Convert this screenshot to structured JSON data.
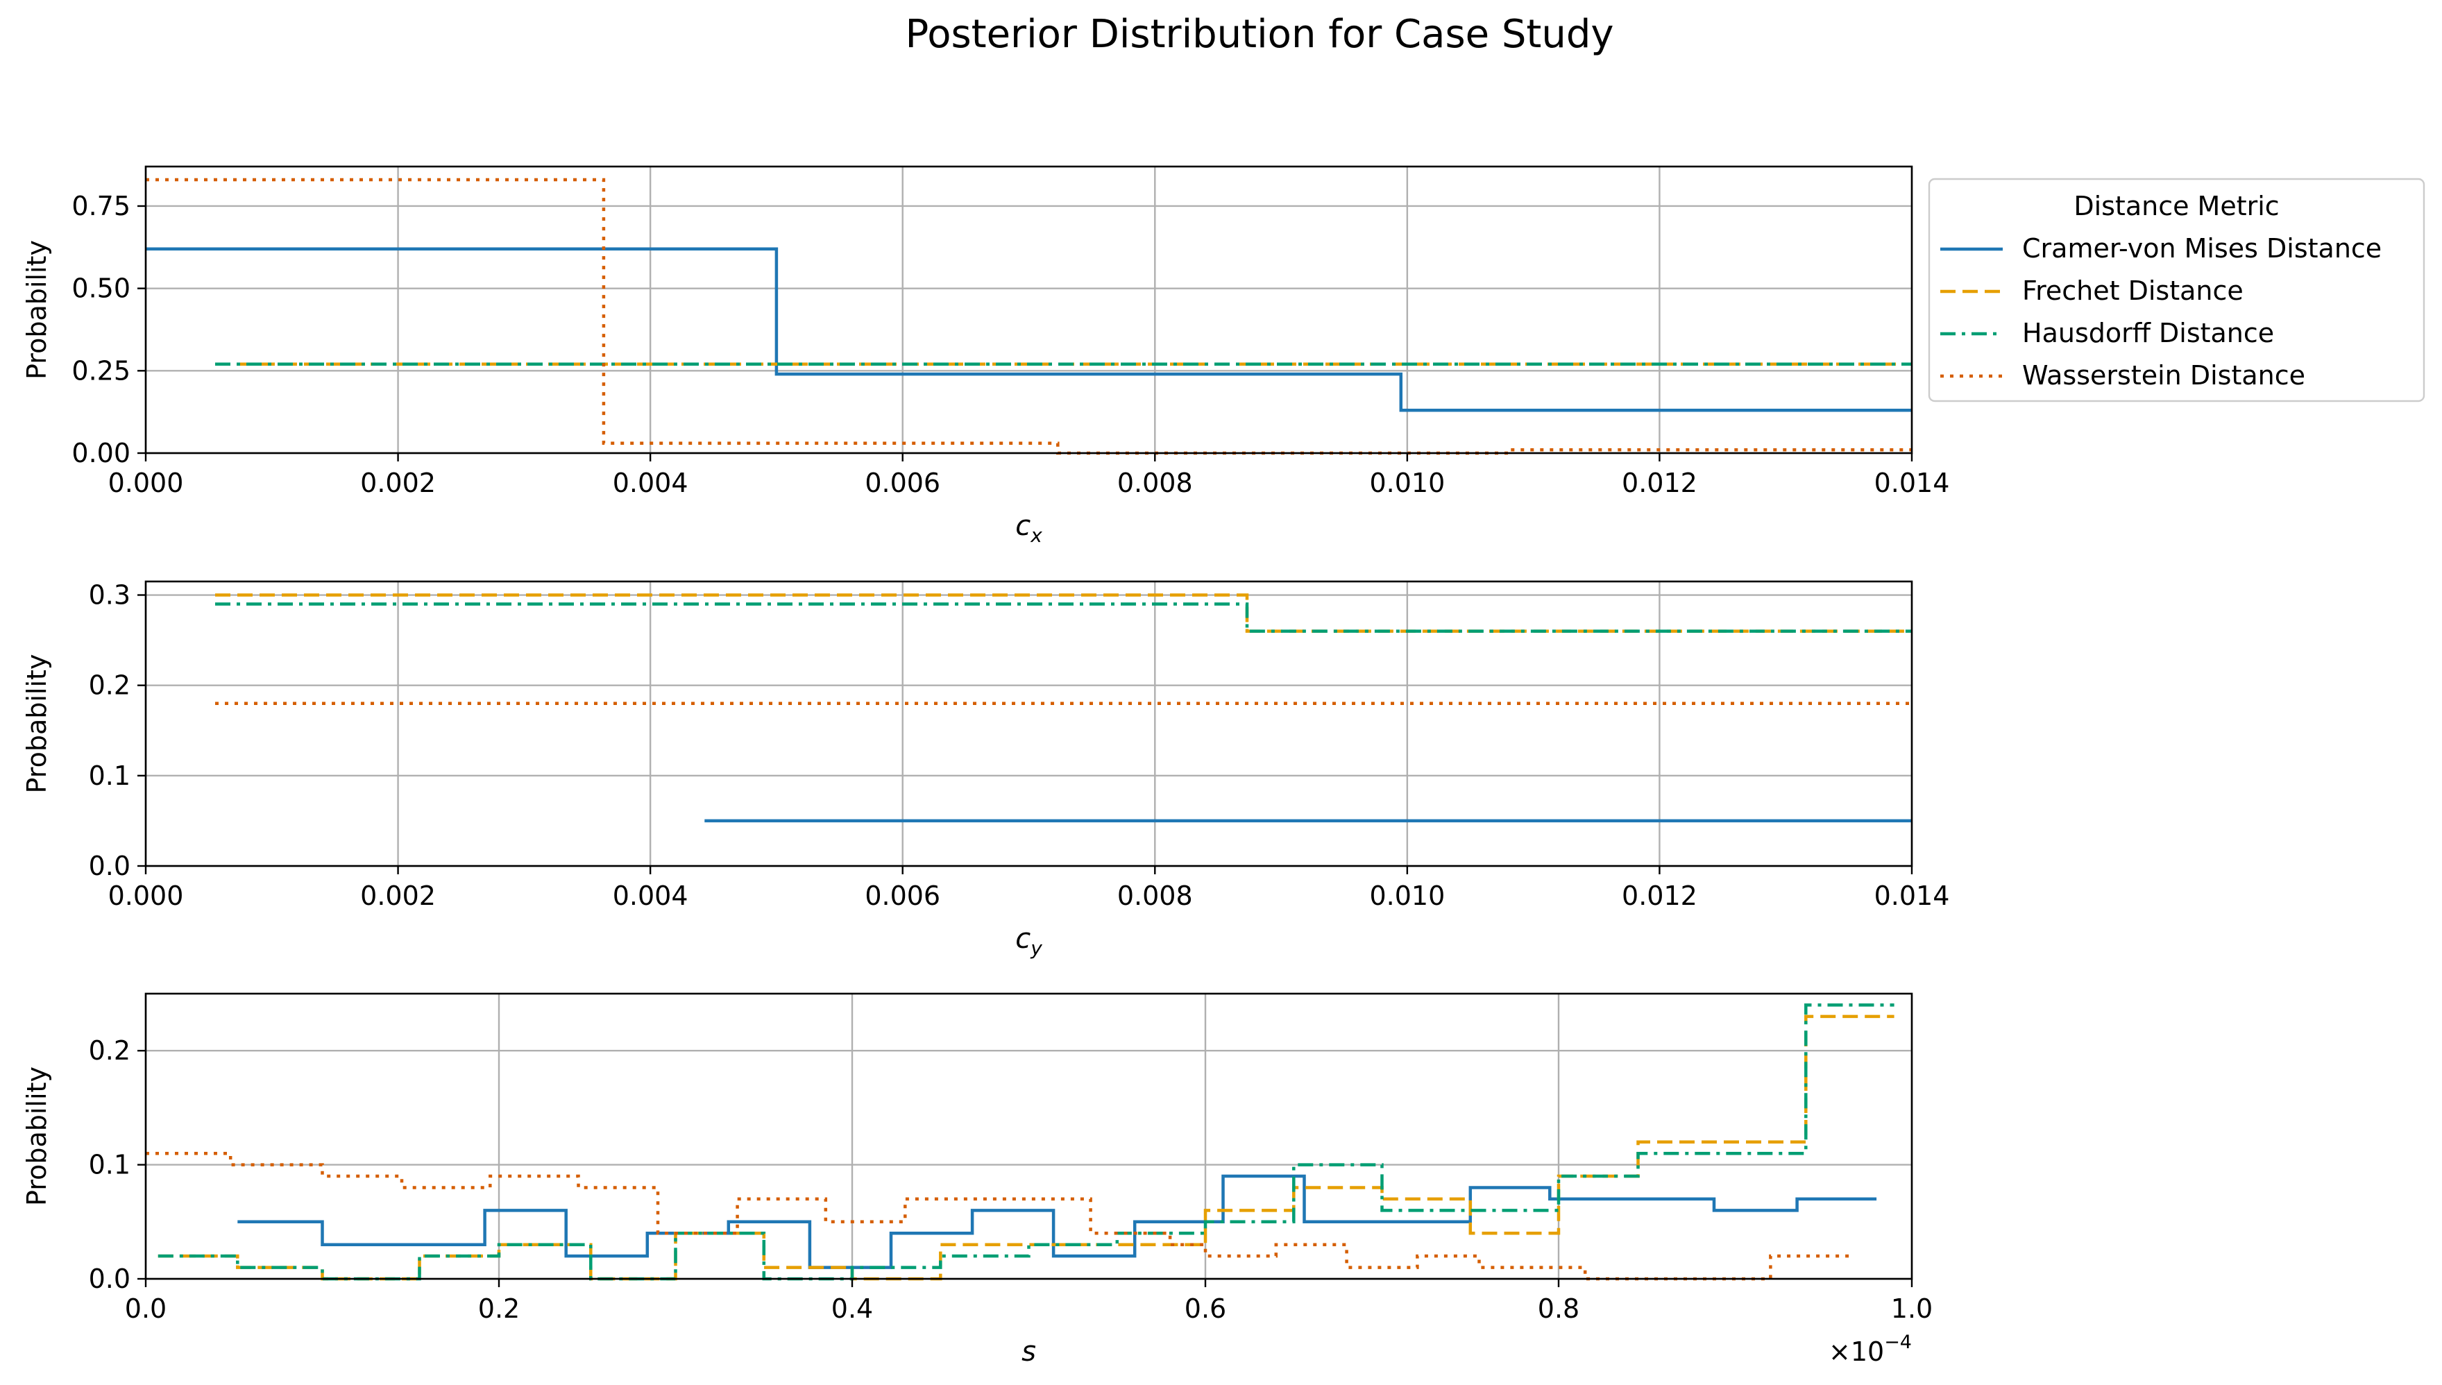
{
  "chart_data": {
    "type": "line",
    "title": "Posterior Distribution for Case Study",
    "legend": {
      "title": "Distance Metric",
      "placement": "outside upper right of top panel",
      "entries": [
        {
          "name": "Cramer-von Mises Distance",
          "color": "#1f77b4",
          "dash": "solid"
        },
        {
          "name": "Frechet Distance",
          "color": "#e69f00",
          "dash": "dashed"
        },
        {
          "name": "Hausdorff Distance",
          "color": "#009e73",
          "dash": "dashdot"
        },
        {
          "name": "Wasserstein Distance",
          "color": "#d55e00",
          "dash": "dotted"
        }
      ]
    },
    "grid": true,
    "panels": [
      {
        "id": "cx",
        "xlabel": "c",
        "xlabel_sub": "x",
        "ylabel": "Probability",
        "xlim": [
          0,
          0.014
        ],
        "ylim": [
          0,
          0.87
        ],
        "xticks": [
          0,
          0.002,
          0.004,
          0.006,
          0.008,
          0.01,
          0.012,
          0.014
        ],
        "xtick_labels": [
          "0.000",
          "0.002",
          "0.004",
          "0.006",
          "0.008",
          "0.010",
          "0.012",
          "0.014"
        ],
        "yticks": [
          0,
          0.25,
          0.5,
          0.75
        ],
        "ytick_labels": [
          "0.00",
          "0.25",
          "0.50",
          "0.75"
        ],
        "series": [
          {
            "name": "Cramer-von Mises Distance",
            "x": [
              0.0,
              0.005,
              0.00995
            ],
            "y": [
              0.62,
              0.24,
              0.13
            ],
            "x_end": 0.014
          },
          {
            "name": "Frechet Distance",
            "x": [
              0.00055
            ],
            "y": [
              0.27
            ],
            "x_end": 0.014
          },
          {
            "name": "Hausdorff Distance",
            "x": [
              0.00055
            ],
            "y": [
              0.27
            ],
            "x_end": 0.014
          },
          {
            "name": "Wasserstein Distance",
            "x": [
              0.0,
              0.00363,
              0.00723,
              0.0108
            ],
            "y": [
              0.83,
              0.03,
              0.0,
              0.01
            ],
            "x_end": 0.014
          }
        ]
      },
      {
        "id": "cy",
        "xlabel": "c",
        "xlabel_sub": "y",
        "ylabel": "Probability",
        "xlim": [
          0,
          0.014
        ],
        "ylim": [
          0,
          0.315
        ],
        "xticks": [
          0,
          0.002,
          0.004,
          0.006,
          0.008,
          0.01,
          0.012,
          0.014
        ],
        "xtick_labels": [
          "0.000",
          "0.002",
          "0.004",
          "0.006",
          "0.008",
          "0.010",
          "0.012",
          "0.014"
        ],
        "yticks": [
          0,
          0.1,
          0.2,
          0.3
        ],
        "ytick_labels": [
          "0.0",
          "0.1",
          "0.2",
          "0.3"
        ],
        "series": [
          {
            "name": "Cramer-von Mises Distance",
            "x": [
              0.00443
            ],
            "y": [
              0.05
            ],
            "x_end": 0.014
          },
          {
            "name": "Frechet Distance",
            "x": [
              0.00055,
              0.00873
            ],
            "y": [
              0.3,
              0.26
            ],
            "x_end": 0.014
          },
          {
            "name": "Hausdorff Distance",
            "x": [
              0.00055,
              0.00873
            ],
            "y": [
              0.29,
              0.26
            ],
            "x_end": 0.014
          },
          {
            "name": "Wasserstein Distance",
            "x": [
              0.00055
            ],
            "y": [
              0.18
            ],
            "x_end": 0.014
          }
        ]
      },
      {
        "id": "s",
        "xlabel": "s",
        "xlabel_sub": "",
        "ylabel": "Probability",
        "offset_text": "×10",
        "offset_exp": "−4",
        "xlim": [
          0,
          1.0
        ],
        "ylim": [
          0,
          0.25
        ],
        "xticks": [
          0,
          0.2,
          0.4,
          0.6,
          0.8,
          1.0
        ],
        "xtick_labels": [
          "0.0",
          "0.2",
          "0.4",
          "0.6",
          "0.8",
          "1.0"
        ],
        "yticks": [
          0,
          0.1,
          0.2
        ],
        "ytick_labels": [
          "0.0",
          "0.1",
          "0.2"
        ],
        "series": [
          {
            "name": "Cramer-von Mises Distance",
            "x": [
              0.052,
              0.1,
              0.192,
              0.238,
              0.284,
              0.33,
              0.376,
              0.422,
              0.468,
              0.514,
              0.56,
              0.61,
              0.656,
              0.75,
              0.795,
              0.888,
              0.935
            ],
            "y": [
              0.05,
              0.03,
              0.06,
              0.02,
              0.04,
              0.05,
              0.01,
              0.04,
              0.06,
              0.02,
              0.05,
              0.09,
              0.05,
              0.08,
              0.07,
              0.06,
              0.07
            ],
            "x_end": 0.98
          },
          {
            "name": "Frechet Distance",
            "x": [
              0.007,
              0.052,
              0.1,
              0.155,
              0.2,
              0.252,
              0.3,
              0.35,
              0.4,
              0.45,
              0.5,
              0.55,
              0.6,
              0.65,
              0.7,
              0.75,
              0.8,
              0.845,
              0.94
            ],
            "y": [
              0.02,
              0.01,
              0.0,
              0.02,
              0.03,
              0.0,
              0.04,
              0.01,
              0.0,
              0.03,
              0.03,
              0.03,
              0.06,
              0.08,
              0.07,
              0.04,
              0.09,
              0.12,
              0.23
            ],
            "x_end": 0.99
          },
          {
            "name": "Hausdorff Distance",
            "x": [
              0.007,
              0.052,
              0.1,
              0.155,
              0.2,
              0.252,
              0.3,
              0.35,
              0.4,
              0.45,
              0.5,
              0.55,
              0.6,
              0.65,
              0.7,
              0.75,
              0.8,
              0.845,
              0.94
            ],
            "y": [
              0.02,
              0.01,
              0.0,
              0.02,
              0.03,
              0.0,
              0.04,
              0.0,
              0.01,
              0.02,
              0.03,
              0.04,
              0.05,
              0.1,
              0.06,
              0.06,
              0.09,
              0.11,
              0.24
            ],
            "x_end": 0.99
          },
          {
            "name": "Wasserstein Distance",
            "x": [
              0.0,
              0.048,
              0.1,
              0.145,
              0.195,
              0.245,
              0.29,
              0.335,
              0.385,
              0.43,
              0.535,
              0.58,
              0.6,
              0.64,
              0.68,
              0.72,
              0.755,
              0.815,
              0.92
            ],
            "y": [
              0.11,
              0.1,
              0.09,
              0.08,
              0.09,
              0.08,
              0.04,
              0.07,
              0.05,
              0.07,
              0.04,
              0.03,
              0.02,
              0.03,
              0.01,
              0.02,
              0.01,
              0.0,
              0.02
            ],
            "x_end": 0.965
          }
        ]
      }
    ]
  }
}
